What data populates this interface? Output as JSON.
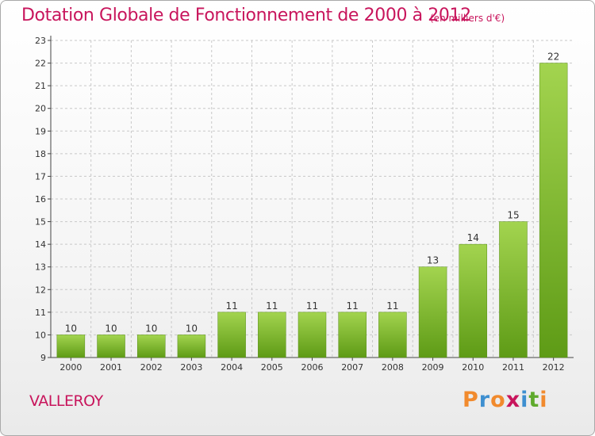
{
  "header": {
    "title": "Dotation Globale de Fonctionnement de 2000 à 2012",
    "subtitle": "(en milliers d'€)"
  },
  "commune": "VALLEROY",
  "logo": {
    "text": "Proxiti",
    "letter_colors": [
      "#f18a2d",
      "#3e8fd0",
      "#f18a2d",
      "#c8155c",
      "#3e8fd0",
      "#5faa2d",
      "#f18a2d"
    ]
  },
  "colors": {
    "bar_top": "#a3d44f",
    "bar_bottom": "#5e9b16",
    "title": "#c8155c",
    "grid": "#c8c8c8",
    "axis": "#444444"
  },
  "chart_data": {
    "type": "bar",
    "categories": [
      "2000",
      "2001",
      "2002",
      "2003",
      "2004",
      "2005",
      "2006",
      "2007",
      "2008",
      "2009",
      "2010",
      "2011",
      "2012"
    ],
    "values": [
      10,
      10,
      10,
      10,
      11,
      11,
      11,
      11,
      11,
      13,
      14,
      15,
      22
    ],
    "data_labels": [
      "10",
      "10",
      "10",
      "10",
      "11",
      "11",
      "11",
      "11",
      "11",
      "13",
      "14",
      "15",
      "22"
    ],
    "title": "Dotation Globale de Fonctionnement de 2000 à 2012",
    "subtitle": "(en milliers d'€)",
    "xlabel": "",
    "ylabel": "",
    "ylim": [
      9,
      23
    ],
    "yticks": [
      9,
      10,
      11,
      12,
      13,
      14,
      15,
      16,
      17,
      18,
      19,
      20,
      21,
      22,
      23
    ],
    "grid": true,
    "legend": "none"
  }
}
